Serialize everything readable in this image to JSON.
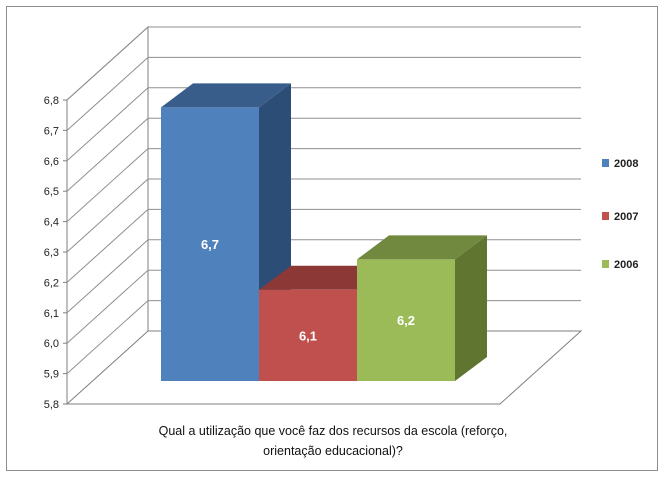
{
  "chart_data": {
    "type": "bar",
    "three_d": true,
    "title": "",
    "xlabel_lines": [
      "Qual a utilização que você faz dos recursos da escola (reforço,",
      "orientação educacional)?"
    ],
    "ylabel": "",
    "ylim": [
      5.8,
      6.8
    ],
    "yticks": [
      "5,8",
      "5,9",
      "6,0",
      "6,1",
      "6,2",
      "6,3",
      "6,4",
      "6,5",
      "6,6",
      "6,7",
      "6,8"
    ],
    "grid": true,
    "legend_position": "right",
    "series": [
      {
        "name": "2008",
        "value": 6.7,
        "label": "6,7",
        "color": "#4f81bd",
        "side": "#2c4d75",
        "top": "#385d8a"
      },
      {
        "name": "2007",
        "value": 6.1,
        "label": "6,1",
        "color": "#c0504d",
        "side": "#7a2624",
        "top": "#8c3836"
      },
      {
        "name": "2006",
        "value": 6.2,
        "label": "6,2",
        "color": "#9bbb59",
        "side": "#5f7530",
        "top": "#71893f"
      }
    ]
  }
}
